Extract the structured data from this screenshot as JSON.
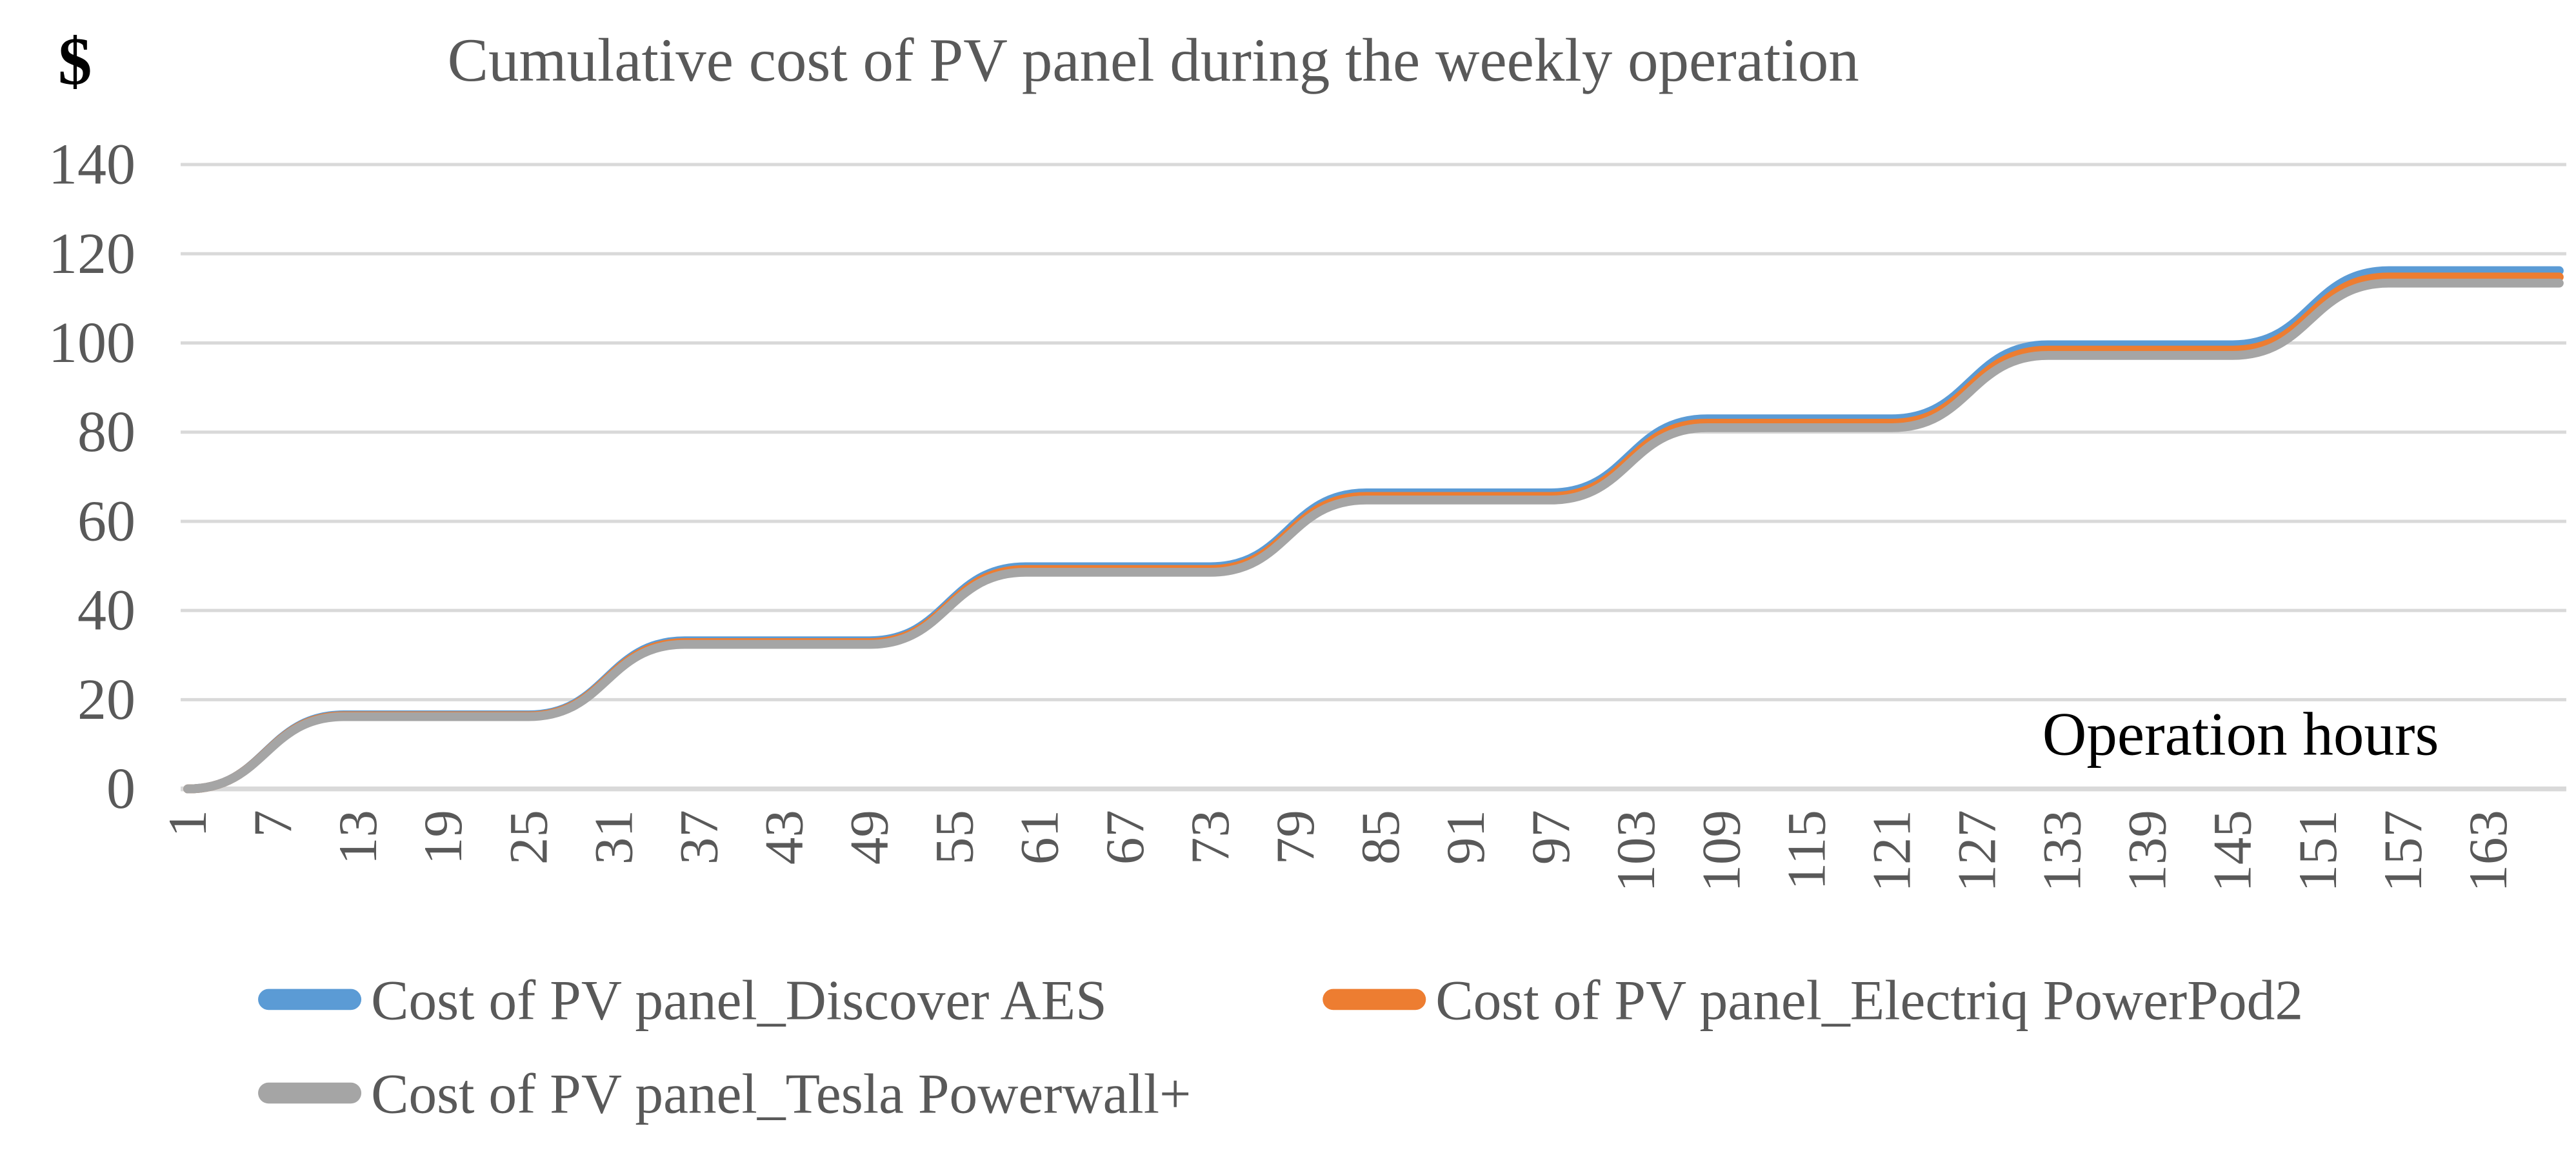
{
  "chart_data": {
    "type": "line",
    "title": "Cumulative cost of PV panel during the weekly operation",
    "y_unit_label": "$",
    "x_axis_label": "Operation hours",
    "ylim": [
      0,
      140
    ],
    "y_ticks": [
      0,
      20,
      40,
      60,
      80,
      100,
      120,
      140
    ],
    "xlim": [
      1,
      168
    ],
    "x_tick_labels": [
      "1",
      "7",
      "13",
      "19",
      "25",
      "31",
      "37",
      "43",
      "49",
      "55",
      "61",
      "67",
      "73",
      "79",
      "85",
      "91",
      "97",
      "103",
      "109",
      "115",
      "121",
      "127",
      "133",
      "139",
      "145",
      "151",
      "157",
      "163"
    ],
    "grid": "horizontal-only",
    "gridline_color": "#D9D9D9",
    "axis_text_color": "#595959",
    "legend_position": "bottom-left-two-rows",
    "line_shape": "smoothed daily steps: cost rises during daylight hours (first ~12 h of each day), flat plateau at night, 7 days over 168 operation hours",
    "series": [
      {
        "name": "Cost of PV panel_Discover AES",
        "color": "#5B9BD5",
        "daily_increment": 16.6,
        "points": [
          [
            1,
            0
          ],
          [
            12,
            16.6
          ],
          [
            25,
            16.6
          ],
          [
            36,
            33.2
          ],
          [
            49,
            33.2
          ],
          [
            60,
            49.8
          ],
          [
            73,
            49.8
          ],
          [
            84,
            66.4
          ],
          [
            97,
            66.4
          ],
          [
            108,
            83.0
          ],
          [
            121,
            83.0
          ],
          [
            132,
            99.6
          ],
          [
            145,
            99.6
          ],
          [
            156,
            116.2
          ],
          [
            168,
            116.2
          ]
        ]
      },
      {
        "name": "Cost of PV panel_Electriq PowerPod2",
        "color": "#ED7D31",
        "daily_increment": 16.4,
        "points": [
          [
            1,
            0
          ],
          [
            12,
            16.4
          ],
          [
            25,
            16.4
          ],
          [
            36,
            32.8
          ],
          [
            49,
            32.8
          ],
          [
            60,
            49.2
          ],
          [
            73,
            49.2
          ],
          [
            84,
            65.6
          ],
          [
            97,
            65.6
          ],
          [
            108,
            82.0
          ],
          [
            121,
            82.0
          ],
          [
            132,
            98.4
          ],
          [
            145,
            98.4
          ],
          [
            156,
            114.8
          ],
          [
            168,
            114.8
          ]
        ]
      },
      {
        "name": "Cost of PV panel_Tesla Powerwall+",
        "color": "#A5A5A5",
        "daily_increment": 16.2,
        "points": [
          [
            1,
            0
          ],
          [
            12,
            16.2
          ],
          [
            25,
            16.2
          ],
          [
            36,
            32.4
          ],
          [
            49,
            32.4
          ],
          [
            60,
            48.6
          ],
          [
            73,
            48.6
          ],
          [
            84,
            64.8
          ],
          [
            97,
            64.8
          ],
          [
            108,
            81.0
          ],
          [
            121,
            81.0
          ],
          [
            132,
            97.2
          ],
          [
            145,
            97.2
          ],
          [
            156,
            113.4
          ],
          [
            168,
            113.4
          ]
        ]
      }
    ]
  }
}
